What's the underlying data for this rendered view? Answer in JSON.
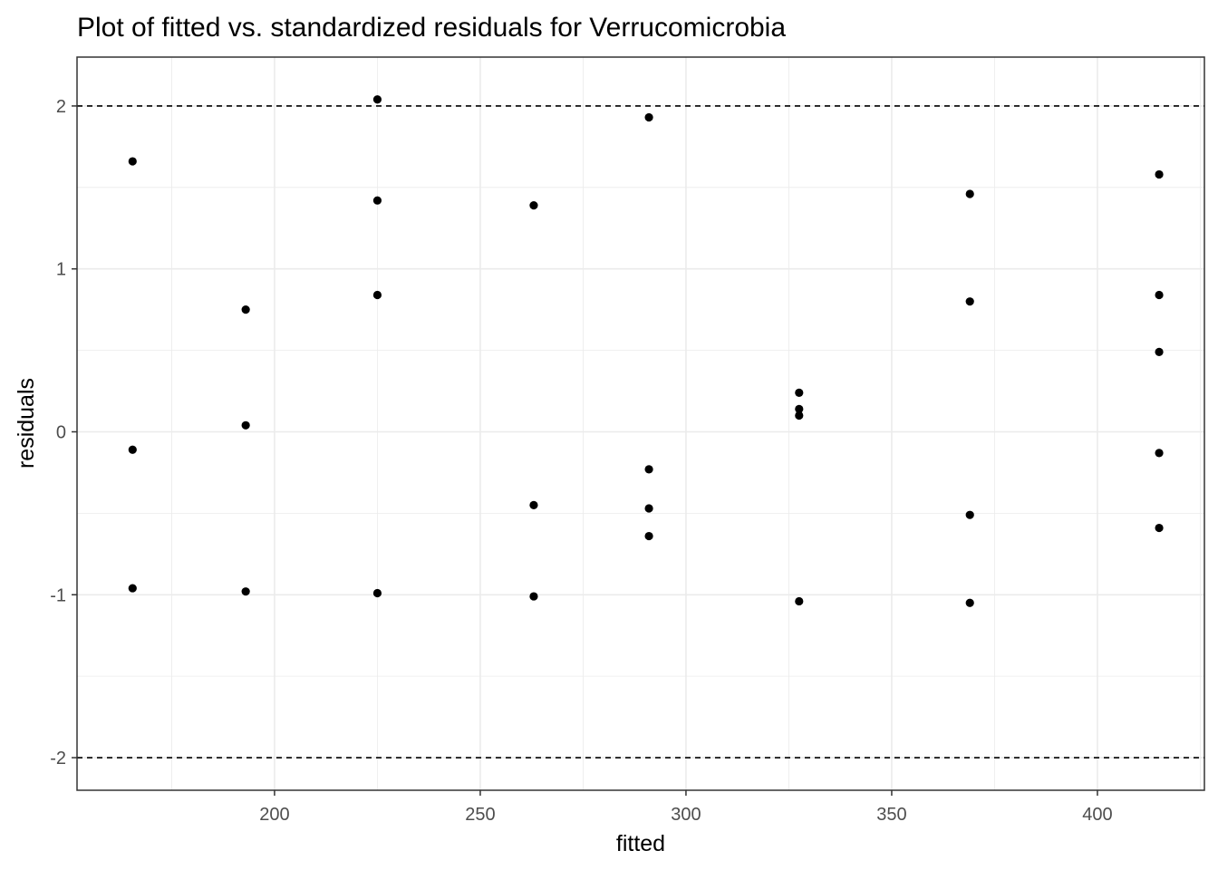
{
  "chart_data": {
    "type": "scatter",
    "title": "Plot of fitted vs. standardized residuals for Verrucomicrobia",
    "xlabel": "fitted",
    "ylabel": "residuals",
    "xlim": [
      152,
      426
    ],
    "ylim": [
      -2.2,
      2.3
    ],
    "x_ticks": [
      200,
      250,
      300,
      350,
      400
    ],
    "x_tick_labels": [
      "200",
      "250",
      "300",
      "350",
      "400"
    ],
    "y_ticks": [
      -2,
      -1,
      0,
      1,
      2
    ],
    "y_tick_labels": [
      "-2",
      "-1",
      "0",
      "1",
      "2"
    ],
    "grid": true,
    "reference_lines": [
      2,
      -2
    ],
    "points": [
      {
        "x": 165.5,
        "y": 1.66
      },
      {
        "x": 165.5,
        "y": -0.11
      },
      {
        "x": 165.5,
        "y": -0.96
      },
      {
        "x": 193.0,
        "y": 0.75
      },
      {
        "x": 193.0,
        "y": 0.04
      },
      {
        "x": 193.0,
        "y": -0.98
      },
      {
        "x": 225.0,
        "y": 2.04
      },
      {
        "x": 225.0,
        "y": 1.42
      },
      {
        "x": 225.0,
        "y": 0.84
      },
      {
        "x": 225.0,
        "y": -0.99
      },
      {
        "x": 263.0,
        "y": 1.39
      },
      {
        "x": 263.0,
        "y": -0.45
      },
      {
        "x": 263.0,
        "y": -1.01
      },
      {
        "x": 291.0,
        "y": 1.93
      },
      {
        "x": 291.0,
        "y": -0.23
      },
      {
        "x": 291.0,
        "y": -0.47
      },
      {
        "x": 291.0,
        "y": -0.64
      },
      {
        "x": 327.5,
        "y": 0.24
      },
      {
        "x": 327.5,
        "y": 0.14
      },
      {
        "x": 327.5,
        "y": 0.1
      },
      {
        "x": 327.5,
        "y": -1.04
      },
      {
        "x": 369.0,
        "y": 1.46
      },
      {
        "x": 369.0,
        "y": 0.8
      },
      {
        "x": 369.0,
        "y": -0.51
      },
      {
        "x": 369.0,
        "y": -1.05
      },
      {
        "x": 415.0,
        "y": 1.58
      },
      {
        "x": 415.0,
        "y": 0.84
      },
      {
        "x": 415.0,
        "y": 0.49
      },
      {
        "x": 415.0,
        "y": -0.13
      },
      {
        "x": 415.0,
        "y": -0.59
      }
    ],
    "colors": {
      "point": "#000000",
      "gridline": "#ebebeb",
      "panel_border": "#333333",
      "reference_line": "#000000",
      "tick_label": "#4d4d4d"
    }
  }
}
